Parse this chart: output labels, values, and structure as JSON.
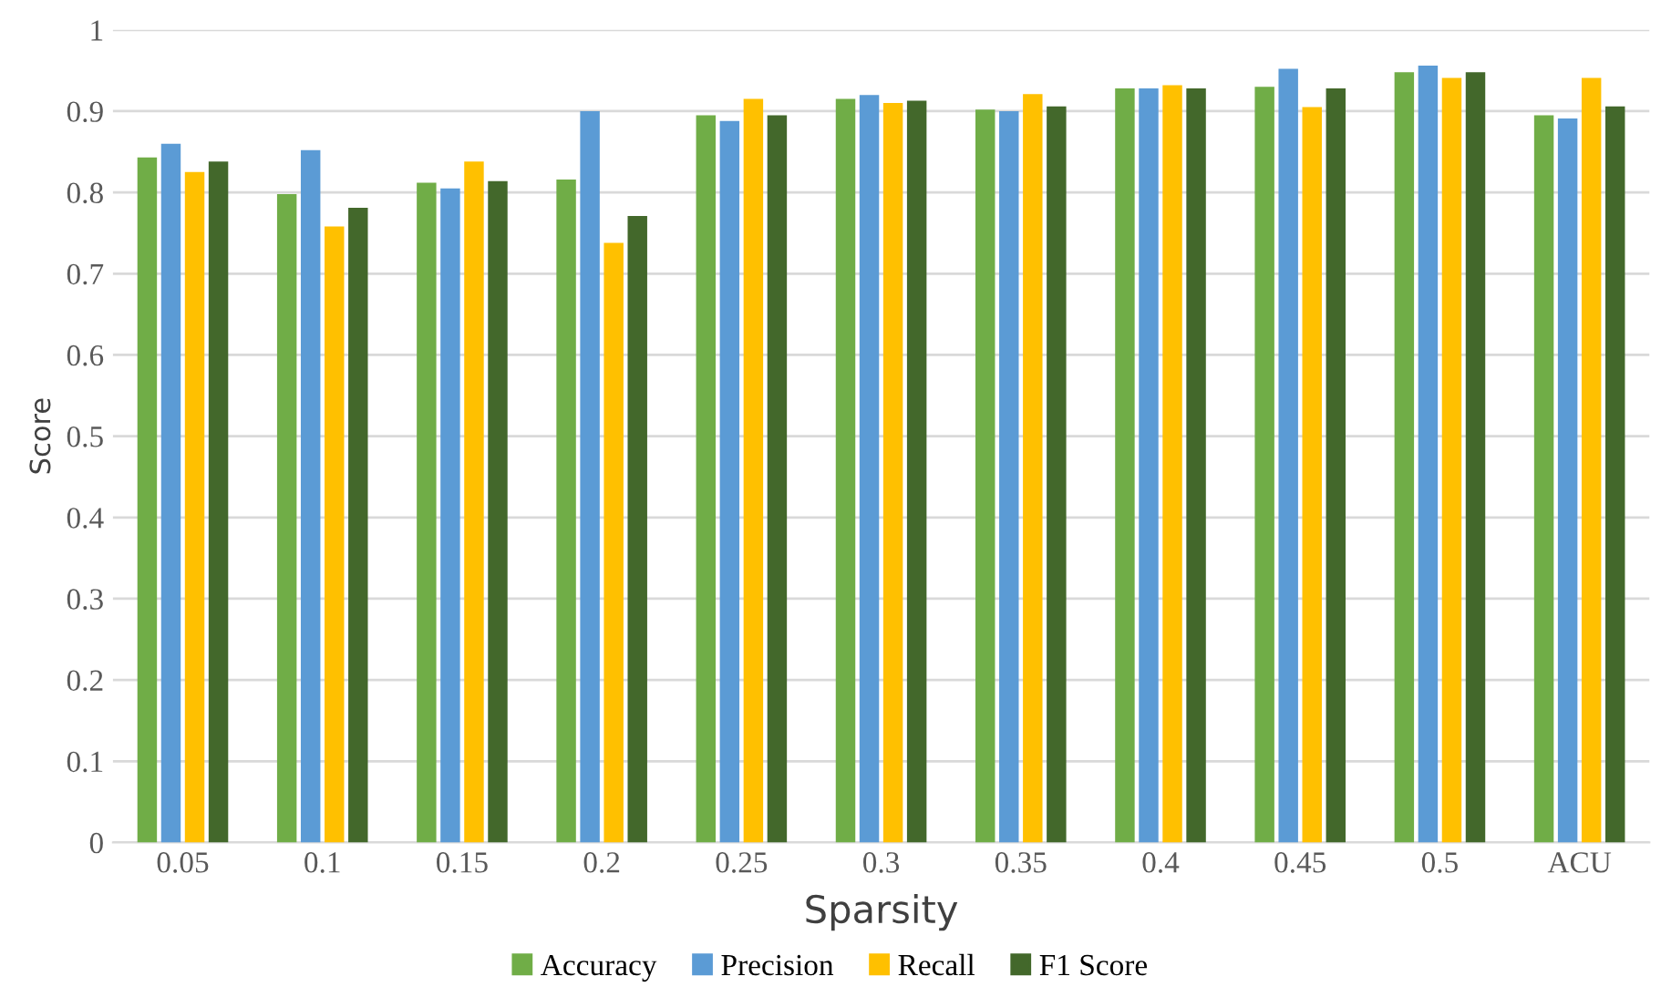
{
  "chart_data": {
    "type": "bar",
    "xlabel": "Sparsity",
    "ylabel": "Score",
    "categories": [
      "0.05",
      "0.1",
      "0.15",
      "0.2",
      "0.25",
      "0.3",
      "0.35",
      "0.4",
      "0.45",
      "0.5",
      "ACU"
    ],
    "series": [
      {
        "name": "Accuracy",
        "color": "#70ad47",
        "values": [
          0.843,
          0.798,
          0.812,
          0.816,
          0.895,
          0.915,
          0.902,
          0.928,
          0.93,
          0.948,
          0.895
        ]
      },
      {
        "name": "Precision",
        "color": "#5b9bd5",
        "values": [
          0.86,
          0.852,
          0.805,
          0.9,
          0.888,
          0.92,
          0.9,
          0.928,
          0.952,
          0.956,
          0.891
        ]
      },
      {
        "name": "Recall",
        "color": "#ffc000",
        "values": [
          0.825,
          0.758,
          0.838,
          0.738,
          0.915,
          0.91,
          0.921,
          0.932,
          0.905,
          0.941,
          0.941
        ]
      },
      {
        "name": "F1 Score",
        "color": "#43682b",
        "values": [
          0.838,
          0.781,
          0.814,
          0.771,
          0.895,
          0.913,
          0.906,
          0.928,
          0.928,
          0.948,
          0.906
        ]
      }
    ],
    "ylim": [
      0,
      1
    ],
    "yticks": [
      0,
      0.1,
      0.2,
      0.3,
      0.4,
      0.5,
      0.6,
      0.7,
      0.8,
      0.9,
      1
    ],
    "grid": "y",
    "legend": "bottom"
  }
}
